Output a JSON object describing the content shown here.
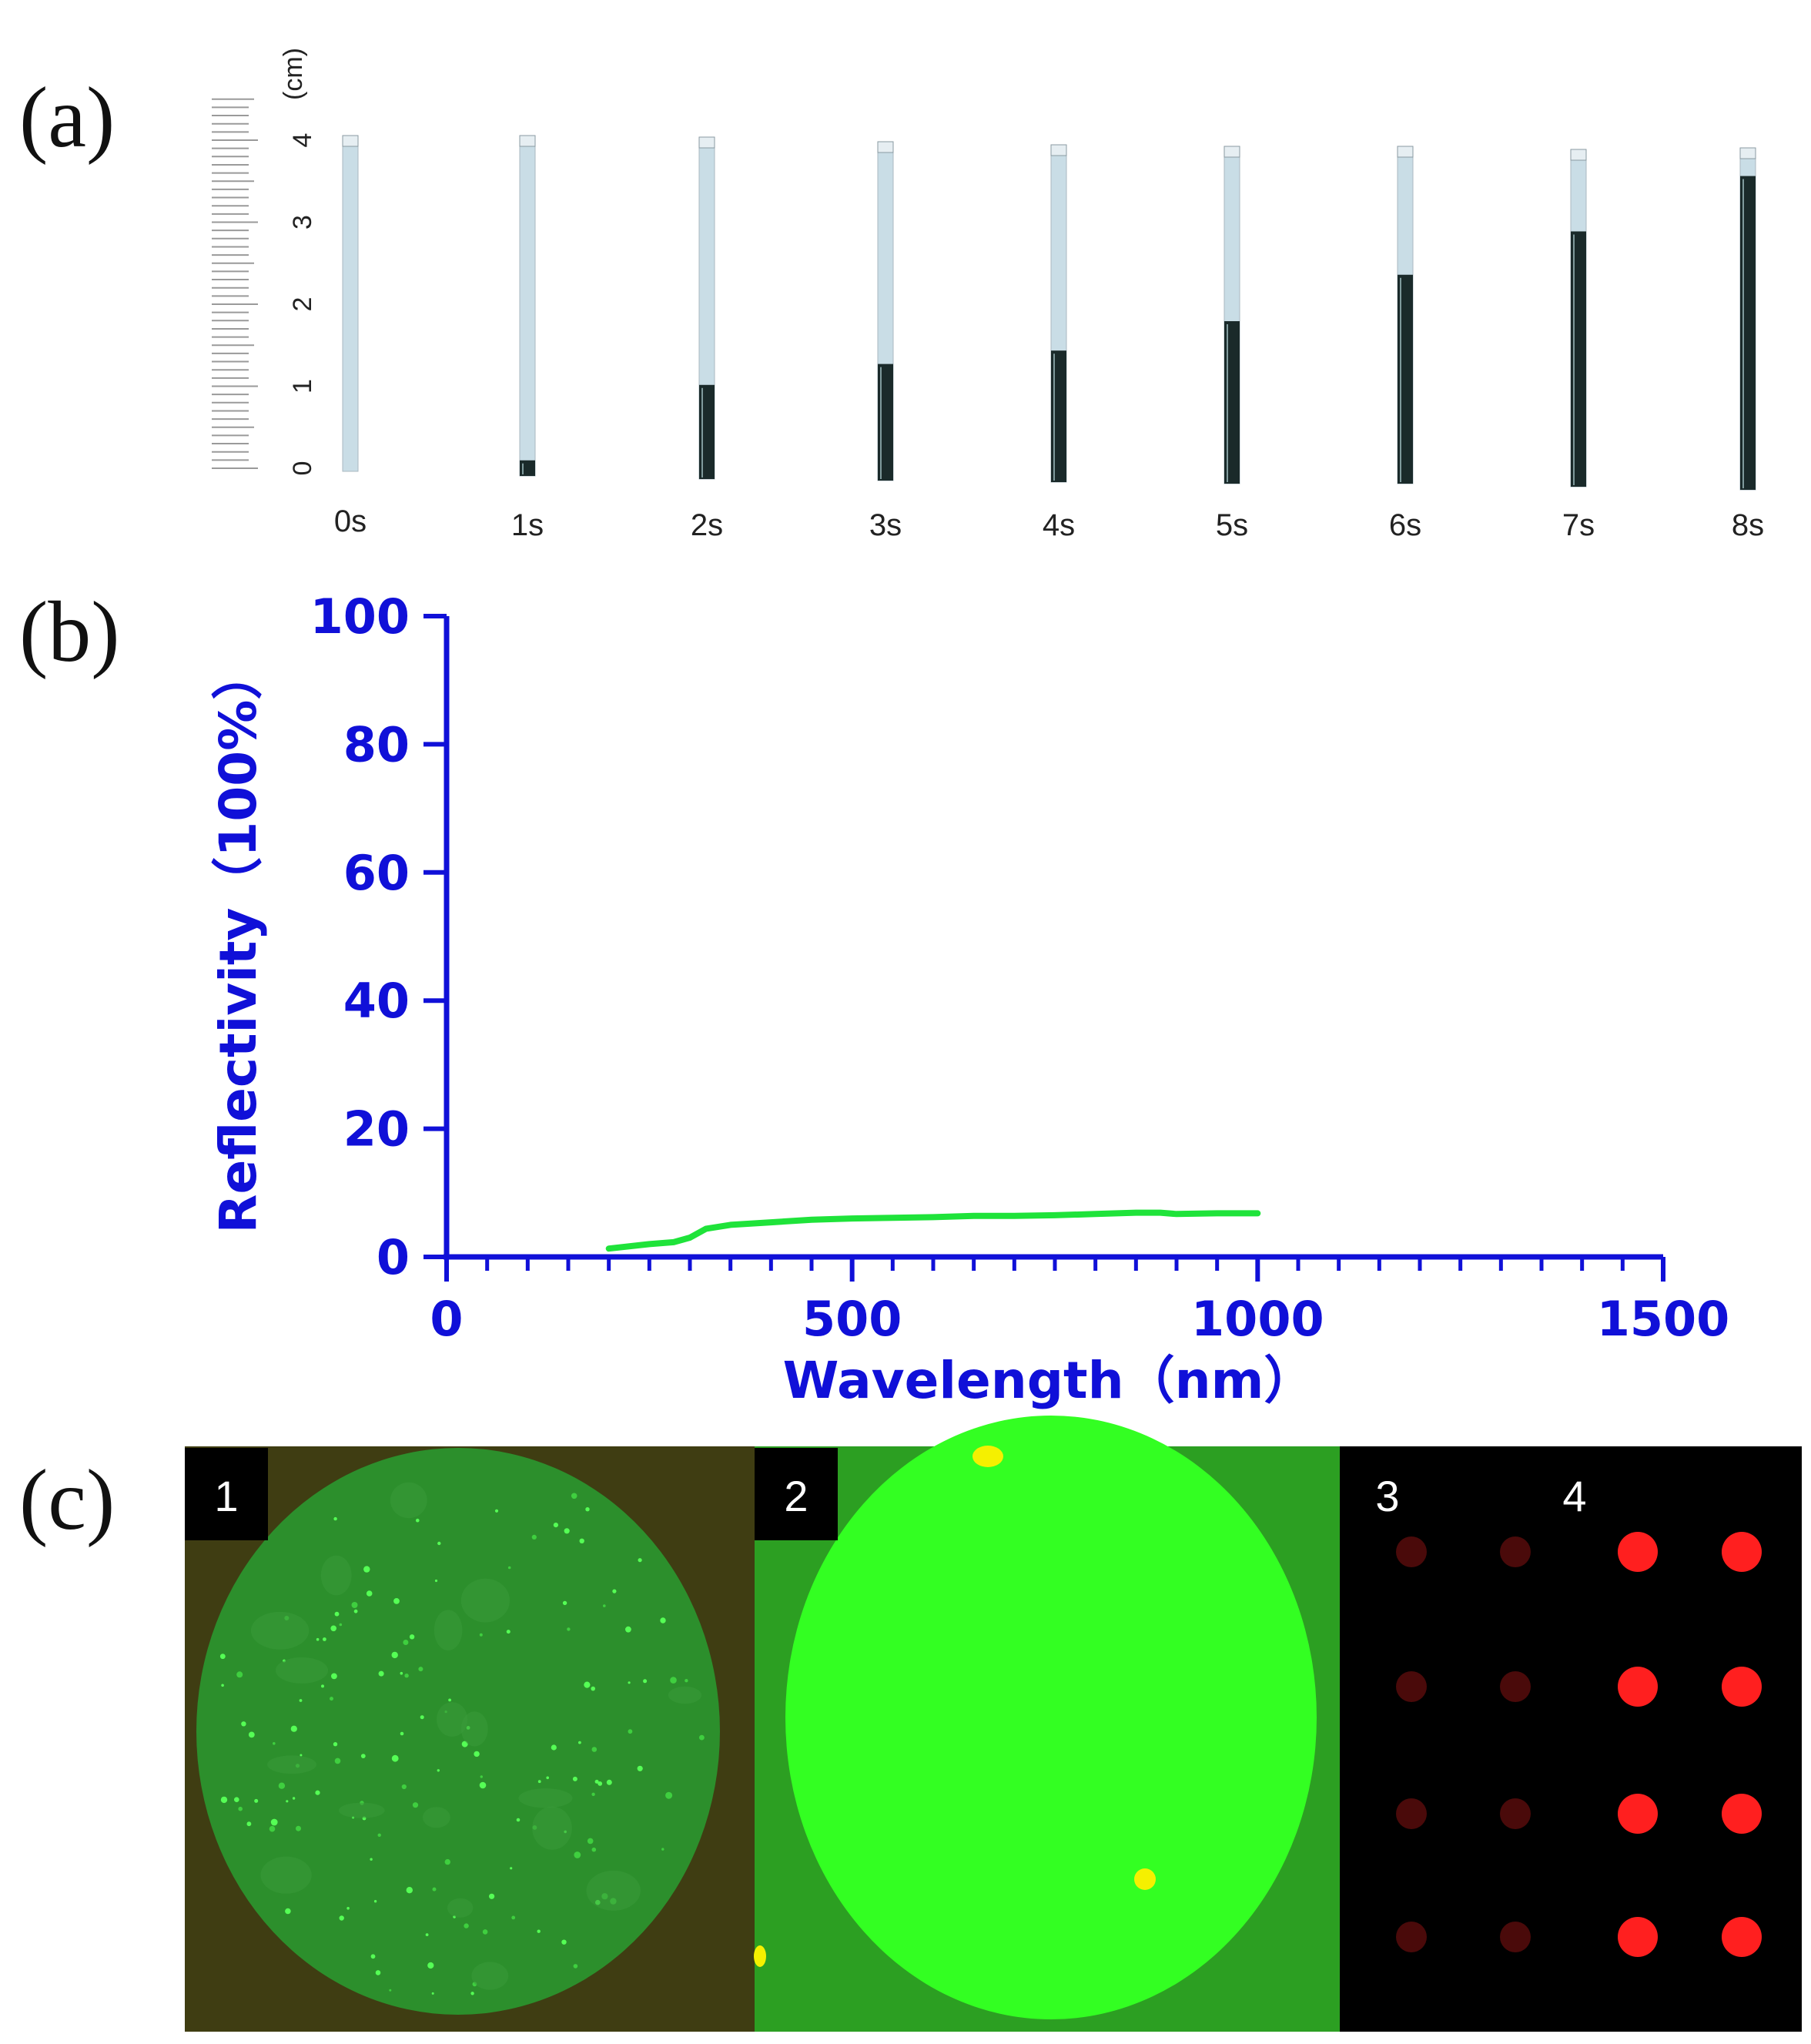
{
  "panels": {
    "a": {
      "label": "(a)",
      "ruler": {
        "unit": "(cm)",
        "ticks": [
          "0",
          "1",
          "2",
          "3",
          "4"
        ]
      },
      "times": [
        "0s",
        "1s",
        "2s",
        "3s",
        "4s",
        "5s",
        "6s",
        "7s",
        "8s"
      ],
      "fill_cm": [
        0,
        0.2,
        1.2,
        1.5,
        1.7,
        2.1,
        2.7,
        3.3,
        4.0
      ]
    },
    "b": {
      "label": "(b)"
    },
    "c": {
      "label": "(c)",
      "insets": [
        "1",
        "2",
        "3",
        "4"
      ]
    }
  },
  "colors": {
    "axis": "#1010d8",
    "curve": "#1fe33a",
    "tube": "#c9dde6",
    "liquid": "#1a2a2a",
    "inset1_bg": "#3f3d12",
    "inset1_disc": "#2c8f2c",
    "inset2_bg": "#2c9f22",
    "inset2_disc": "#33ff22",
    "spot_dim": "#4a0a0a",
    "spot_bright": "#ff1f1f"
  },
  "chart_data": {
    "type": "line",
    "xlabel": "Wavelength（nm）",
    "ylabel": "Reflectivity（100%）",
    "xlim": [
      0,
      1500
    ],
    "ylim": [
      0,
      100
    ],
    "xticks": [
      "0",
      "500",
      "1000",
      "1500"
    ],
    "yticks": [
      "0",
      "20",
      "40",
      "60",
      "80",
      "100"
    ],
    "series": [
      {
        "x": [
          200,
          250,
          280,
          300,
          320,
          350,
          400,
          450,
          500,
          550,
          600,
          650,
          700,
          750,
          800,
          850,
          880,
          900,
          950,
          1000
        ],
        "y": [
          1.3,
          2.0,
          2.3,
          3.0,
          4.4,
          5.0,
          5.4,
          5.8,
          6.0,
          6.1,
          6.2,
          6.4,
          6.4,
          6.5,
          6.7,
          6.9,
          6.9,
          6.7,
          6.8,
          6.8
        ]
      }
    ]
  }
}
